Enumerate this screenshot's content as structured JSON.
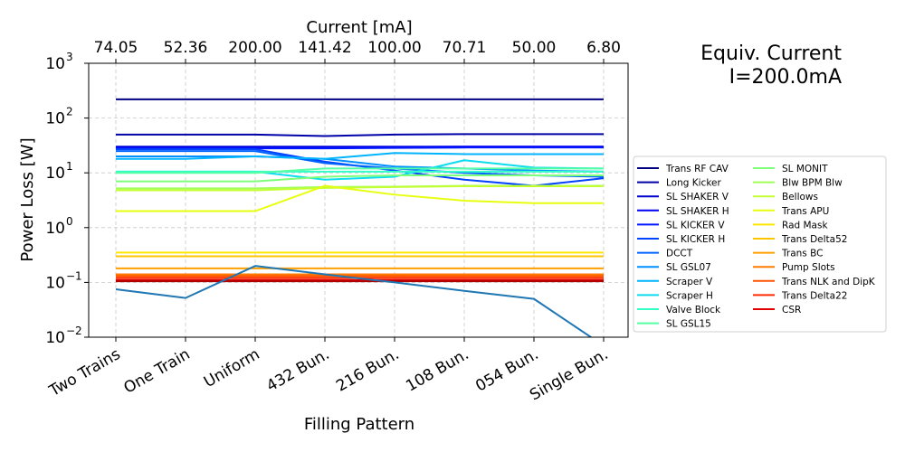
{
  "chart_data": {
    "type": "line",
    "title": "",
    "side_title": [
      "Equiv. Current",
      "I=200.0mA"
    ],
    "xlabel": "Filling Pattern",
    "ylabel": "Power Loss [W]",
    "top_xlabel": "Current [mA]",
    "categories": [
      "Two Trains",
      "One Train",
      "Uniform",
      "432 Bun.",
      "216 Bun.",
      "108 Bun.",
      "054 Bun.",
      "Single Bun."
    ],
    "top_ticks": [
      "74.05",
      "52.36",
      "200.00",
      "141.42",
      "100.00",
      "70.71",
      "50.00",
      "6.80"
    ],
    "y_scale": "log",
    "ylim": [
      0.01,
      1000
    ],
    "y_ticks": [
      {
        "value": 0.01,
        "base": "10",
        "exp": "−2"
      },
      {
        "value": 0.1,
        "base": "10",
        "exp": "−1"
      },
      {
        "value": 1,
        "base": "10",
        "exp": "0"
      },
      {
        "value": 10,
        "base": "10",
        "exp": "1"
      },
      {
        "value": 100,
        "base": "10",
        "exp": "2"
      },
      {
        "value": 1000,
        "base": "10",
        "exp": "3"
      }
    ],
    "grid": true,
    "legend_position": "right",
    "series": [
      {
        "name": "Trans RF CAV",
        "color": "#000080",
        "values": [
          220,
          220,
          220,
          220,
          220,
          220,
          220,
          220
        ]
      },
      {
        "name": "Long Kicker",
        "color": "#0000a8",
        "values": [
          50,
          50,
          50,
          47,
          50,
          51,
          51,
          51
        ]
      },
      {
        "name": "SL SHAKER V",
        "color": "#0000cd",
        "values": [
          30,
          30,
          30,
          30,
          30,
          30,
          30,
          30
        ]
      },
      {
        "name": "SL SHAKER H",
        "color": "#0000f2",
        "values": [
          29,
          29,
          29,
          29,
          29.5,
          30,
          30,
          30
        ]
      },
      {
        "name": "SL KICKER V",
        "color": "#0018ff",
        "values": [
          28,
          28,
          28,
          28,
          28.5,
          29,
          29,
          29
        ]
      },
      {
        "name": "SL KICKER H",
        "color": "#0040ff",
        "values": [
          27,
          27,
          27,
          16,
          11,
          7.5,
          5.8,
          8
        ]
      },
      {
        "name": "DCCT",
        "color": "#0064ff",
        "values": [
          25,
          25,
          25,
          15,
          12,
          10,
          9,
          8.5
        ]
      },
      {
        "name": "SL GSL07",
        "color": "#0090ff",
        "values": [
          20,
          20,
          20,
          18,
          13,
          12,
          11,
          10.5
        ]
      },
      {
        "name": "Scraper V",
        "color": "#00b4ff",
        "values": [
          18,
          18,
          20,
          18,
          23,
          22,
          22,
          22
        ]
      },
      {
        "name": "Scraper H",
        "color": "#0dddee",
        "values": [
          10.5,
          10.5,
          10.5,
          7.5,
          8.5,
          17,
          12.5,
          12
        ]
      },
      {
        "name": "Valve Block",
        "color": "#31ffc7",
        "values": [
          10.5,
          10.5,
          10.5,
          10.5,
          10.5,
          10.5,
          10.5,
          10.5
        ]
      },
      {
        "name": "SL GSL15",
        "color": "#55ffa3",
        "values": [
          10,
          10,
          10,
          12,
          12,
          12,
          12,
          12
        ]
      },
      {
        "name": "SL MONIT",
        "color": "#7dff7a",
        "values": [
          7,
          7,
          7,
          8.5,
          9,
          9,
          9,
          9
        ]
      },
      {
        "name": "Blw BPM Blw",
        "color": "#a0ff56",
        "values": [
          5.2,
          5.2,
          5.2,
          5.5,
          5.6,
          5.8,
          5.8,
          5.8
        ]
      },
      {
        "name": "Bellows",
        "color": "#c4ff33",
        "values": [
          4.8,
          4.8,
          4.8,
          5.3,
          5.5,
          5.7,
          5.7,
          5.7
        ]
      },
      {
        "name": "Trans APU",
        "color": "#e7ff0f",
        "values": [
          2,
          2,
          2,
          5.8,
          4,
          3.1,
          2.8,
          2.8
        ]
      },
      {
        "name": "Rad Mask",
        "color": "#ffe600",
        "values": [
          0.35,
          0.35,
          0.35,
          0.35,
          0.35,
          0.35,
          0.35,
          0.35
        ]
      },
      {
        "name": "Trans Delta52",
        "color": "#ffc400",
        "values": [
          0.3,
          0.3,
          0.3,
          0.3,
          0.3,
          0.3,
          0.3,
          0.3
        ]
      },
      {
        "name": "Trans BC",
        "color": "#ff9f00",
        "values": [
          0.18,
          0.18,
          0.18,
          0.18,
          0.18,
          0.18,
          0.18,
          0.18
        ]
      },
      {
        "name": "Pump Slots",
        "color": "#ff7a00",
        "values": [
          0.14,
          0.14,
          0.14,
          0.14,
          0.14,
          0.14,
          0.14,
          0.14
        ]
      },
      {
        "name": "Trans NLK and DipK",
        "color": "#ff5500",
        "values": [
          0.13,
          0.13,
          0.13,
          0.13,
          0.13,
          0.13,
          0.13,
          0.13
        ]
      },
      {
        "name": "Trans Delta22",
        "color": "#ff2b00",
        "values": [
          0.12,
          0.12,
          0.12,
          0.12,
          0.12,
          0.12,
          0.12,
          0.12
        ]
      },
      {
        "name": "CSR",
        "color": "#e00000",
        "values": [
          0.11,
          0.11,
          0.11,
          0.11,
          0.11,
          0.11,
          0.11,
          0.11
        ]
      },
      {
        "name": "",
        "color": "#b00000",
        "values": [
          0.105,
          0.105,
          0.105,
          0.105,
          0.105,
          0.105,
          0.105,
          0.105
        ]
      },
      {
        "name": "",
        "color": "#1f77b4",
        "values": [
          0.075,
          0.052,
          0.2,
          0.14,
          0.1,
          0.07,
          0.05,
          0.007
        ]
      }
    ]
  }
}
